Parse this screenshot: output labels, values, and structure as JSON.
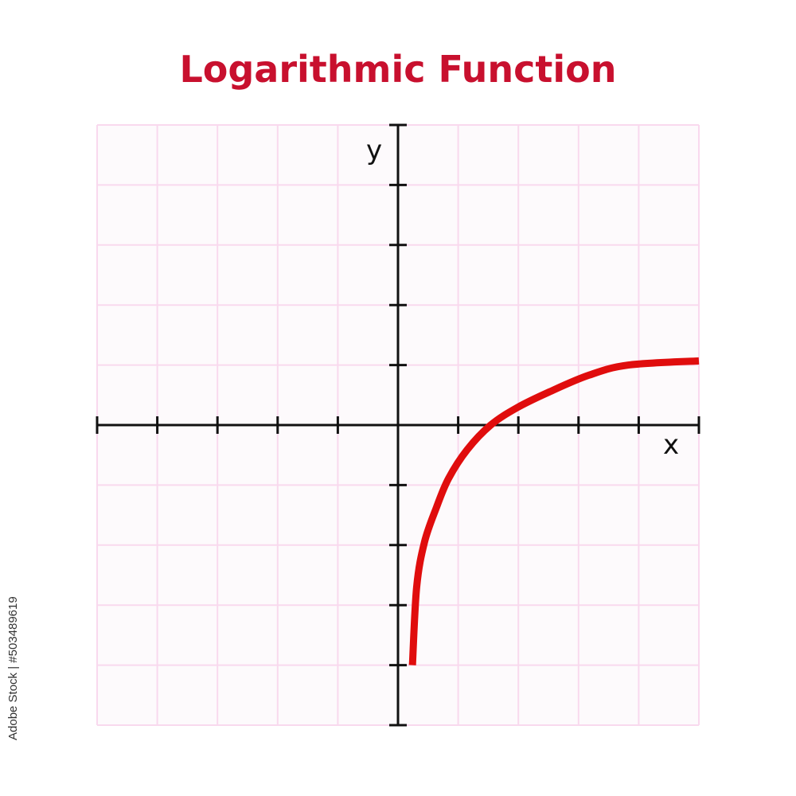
{
  "title": "Logarithmic Function",
  "credit": "Adobe Stock | #503489619",
  "chart_data": {
    "type": "line",
    "title": "Logarithmic Function",
    "xlabel": "x",
    "ylabel": "y",
    "xlim": [
      -5,
      5
    ],
    "ylim": [
      -5,
      5
    ],
    "grid": true,
    "x_ticks": [
      -5,
      -4,
      -3,
      -2,
      -1,
      1,
      2,
      3,
      4,
      5
    ],
    "y_ticks": [
      -5,
      -4,
      -3,
      -2,
      -1,
      1,
      2,
      3,
      4,
      5
    ],
    "series": [
      {
        "color": "#e00d0d",
        "x": [
          0.24,
          0.31,
          0.44,
          0.64,
          0.84,
          1.15,
          1.54,
          1.98,
          2.51,
          3.17,
          3.83,
          5.0
        ],
        "y": [
          -4.0,
          -2.7,
          -1.95,
          -1.37,
          -0.89,
          -0.41,
          0.0,
          0.29,
          0.55,
          0.83,
          1.0,
          1.07
        ]
      }
    ],
    "colors": {
      "grid": "#f9d9ee",
      "grid_bg": "#fdfafc",
      "axis": "#111111",
      "title": "#c8102e"
    }
  }
}
